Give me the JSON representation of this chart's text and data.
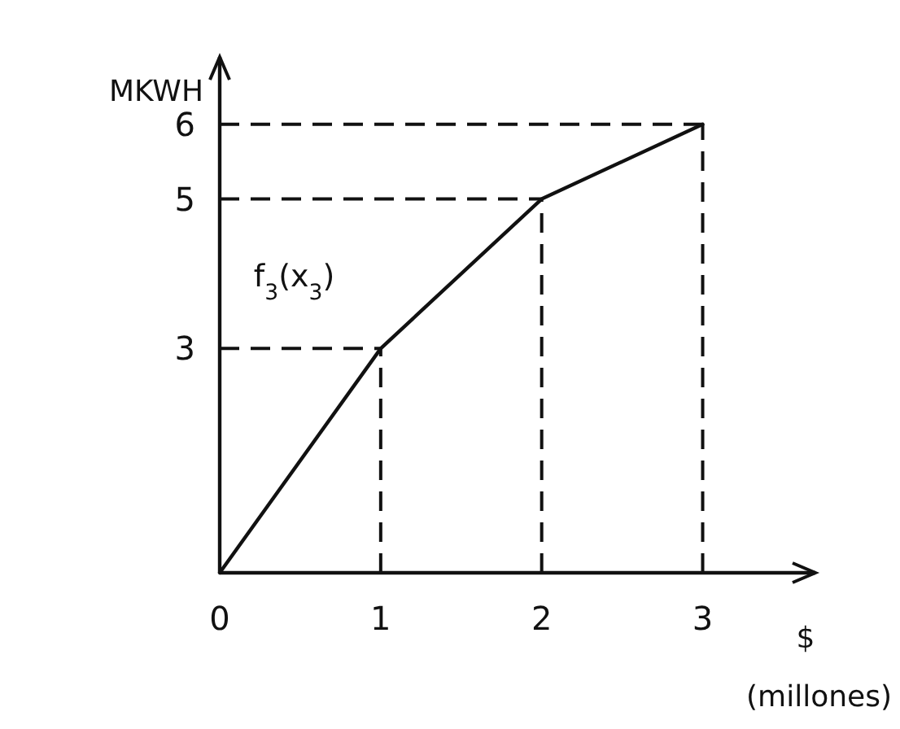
{
  "chart_data": {
    "type": "line",
    "xlabel": "$ (millones)",
    "ylabel": "MKWH",
    "x": [
      0,
      1,
      2,
      3
    ],
    "series": [
      {
        "name": "f$_{3}$(x$_{3}$)",
        "color": "#111111",
        "values": [
          0,
          3,
          5,
          6
        ]
      }
    ],
    "xlim": [
      0,
      3.7
    ],
    "ylim": [
      0,
      6.9
    ],
    "xticks": [
      0,
      1,
      2,
      3
    ],
    "yticks": [
      3,
      5,
      6
    ],
    "ref_lines": [
      {
        "axis": "x",
        "value": 1,
        "line_style": "dashed",
        "color": "#111111"
      },
      {
        "axis": "x",
        "value": 2,
        "line_style": "dashed",
        "color": "#111111"
      },
      {
        "axis": "x",
        "value": 3,
        "line_style": "dashed",
        "color": "#111111"
      },
      {
        "axis": "y",
        "value": 3,
        "line_style": "dashed",
        "color": "#111111"
      },
      {
        "axis": "y",
        "value": 5,
        "line_style": "dashed",
        "color": "#111111"
      },
      {
        "axis": "y",
        "value": 6,
        "line_style": "dashed",
        "color": "#111111"
      }
    ],
    "marker": "none",
    "line_style": "solid"
  }
}
